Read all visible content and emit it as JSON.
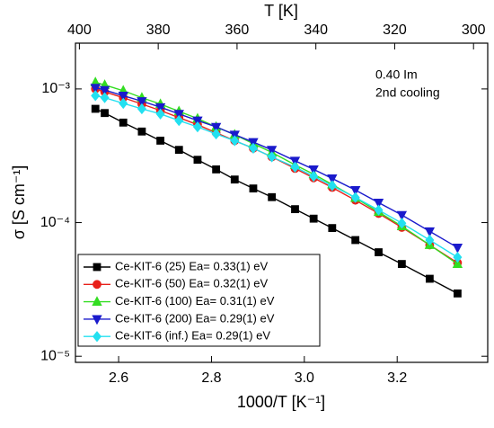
{
  "chart_data": {
    "type": "line",
    "xlabel": "1000/T [K⁻¹]",
    "ylabel": "σ [S cm⁻¹]",
    "x2label": "T [K]",
    "annotations": [
      "0.40 Im",
      "2nd cooling"
    ],
    "log_y": true,
    "legend": "lower left",
    "xlim": [
      2.507,
      3.395
    ],
    "xticks": [
      2.6,
      2.8,
      {
        "value": 3.0,
        "label": "3.0"
      },
      3.2
    ],
    "x2lim": [
      401,
      296.4
    ],
    "x2ticks": [
      400,
      380,
      360,
      340,
      320,
      300
    ],
    "ylim": [
      0.0022,
      9e-06
    ],
    "yticks": [
      {
        "value": 0.001,
        "label": "10⁻³"
      },
      {
        "value": 0.0001,
        "label": "10⁻⁴"
      },
      {
        "value": 1e-05,
        "label": "10⁻⁵"
      }
    ],
    "x": [
      2.55,
      2.57,
      2.61,
      2.65,
      2.69,
      2.73,
      2.77,
      2.81,
      2.85,
      2.89,
      2.93,
      2.98,
      3.02,
      3.06,
      3.11,
      3.16,
      3.21,
      3.27,
      3.33
    ],
    "series": [
      {
        "name": "Ce-KIT-6 (25) Ea= 0.33(1) eV",
        "color": "#000000",
        "marker": "square",
        "values": [
          0.00071,
          0.00066,
          0.00056,
          0.00048,
          0.00041,
          0.00035,
          0.000295,
          0.00025,
          0.00021,
          0.00018,
          0.000155,
          0.000126,
          0.000107,
          9.1e-05,
          7.4e-05,
          6e-05,
          4.9e-05,
          3.8e-05,
          2.95e-05
        ]
      },
      {
        "name": "Ce-KIT-6 (50) Ea= 0.32(1) eV",
        "color": "#e8201a",
        "marker": "circle",
        "values": [
          0.001,
          0.00095,
          0.00086,
          0.00077,
          0.00069,
          0.00061,
          0.00054,
          0.00047,
          0.00041,
          0.00036,
          0.00031,
          0.000254,
          0.000216,
          0.000183,
          0.000147,
          0.000117,
          9.2e-05,
          6.8e-05,
          5e-05
        ]
      },
      {
        "name": "Ce-KIT-6 (100) Ea= 0.31(1) eV",
        "color": "#33dd22",
        "marker": "triangle-up",
        "values": [
          0.00112,
          0.00107,
          0.00097,
          0.00086,
          0.00077,
          0.00068,
          0.0006,
          0.00052,
          0.000455,
          0.00039,
          0.000335,
          0.00027,
          0.00023,
          0.000193,
          0.000153,
          0.00012,
          9.4e-05,
          6.8e-05,
          4.9e-05
        ]
      },
      {
        "name": "Ce-KIT-6 (200) Ea= 0.29(1) eV",
        "color": "#1a1acc",
        "marker": "triangle-down",
        "values": [
          0.00102,
          0.00098,
          0.00089,
          0.00081,
          0.00073,
          0.00065,
          0.00058,
          0.00052,
          0.000455,
          0.0004,
          0.00035,
          0.00029,
          0.00025,
          0.000214,
          0.000175,
          0.000141,
          0.000114,
          8.6e-05,
          6.5e-05
        ]
      },
      {
        "name": "Ce-KIT-6 (inf.) Ea= 0.29(1) eV",
        "color": "#22e0f0",
        "marker": "diamond",
        "values": [
          0.00089,
          0.00086,
          0.00078,
          0.00071,
          0.00065,
          0.00058,
          0.00052,
          0.00046,
          0.00041,
          0.00036,
          0.00031,
          0.00026,
          0.000222,
          0.000189,
          0.000154,
          0.000124,
          9.9e-05,
          7.4e-05,
          5.5e-05
        ]
      }
    ]
  }
}
